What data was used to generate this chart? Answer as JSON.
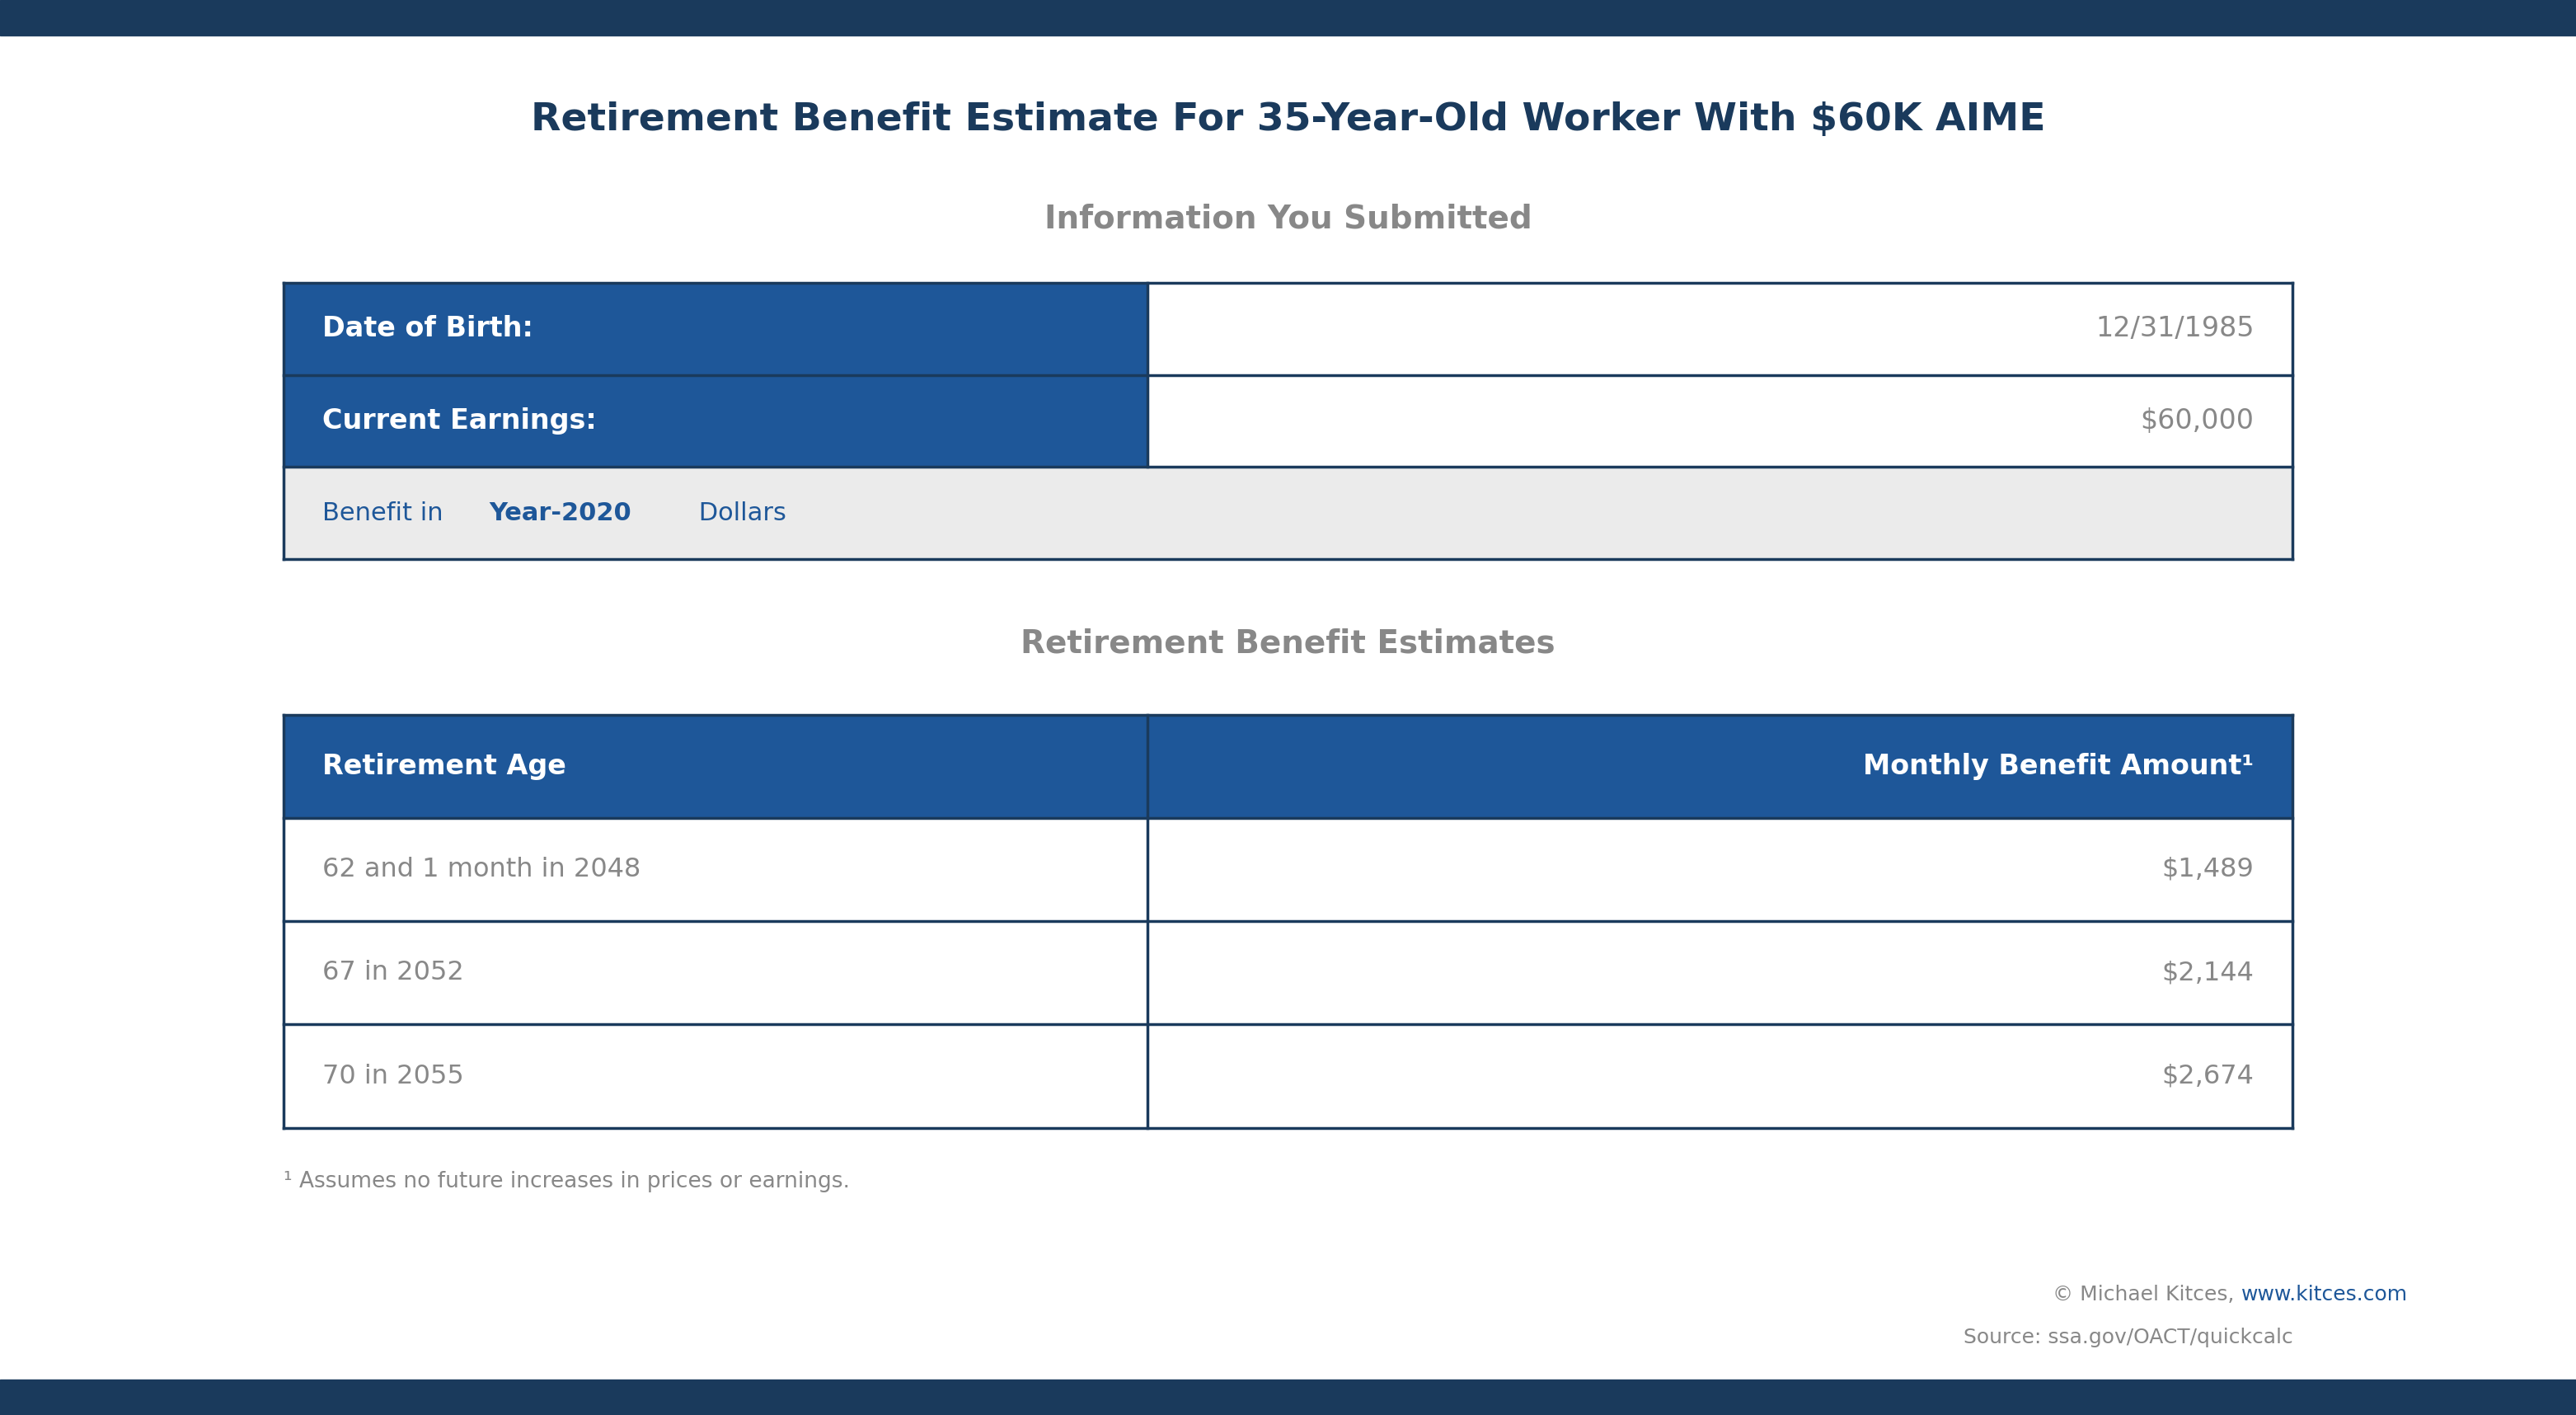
{
  "title": "Retirement Benefit Estimate For 35-Year-Old Worker With $60K AIME",
  "bg_color": "#ffffff",
  "table_blue": "#1e5799",
  "table_border_color": "#1a3a5c",
  "table_bg_light": "#ebebeb",
  "table_white": "#ffffff",
  "text_dark": "#1a3a5c",
  "text_gray": "#888888",
  "section1_title": "Information You Submitted",
  "section2_title": "Retirement Benefit Estimates",
  "info_row1_label": "Date of Birth:",
  "info_row1_value": "12/31/1985",
  "info_row2_label": "Current Earnings:",
  "info_row2_value": "$60,000",
  "info_row3_part1": "Benefit in ",
  "info_row3_part2": "Year-2020",
  "info_row3_part3": " Dollars",
  "benefit_header1": "Retirement Age",
  "benefit_header2": "Monthly Benefit Amount¹",
  "benefit_rows": [
    [
      "62 and 1 month in 2048",
      "$1,489"
    ],
    [
      "67 in 2052",
      "$2,144"
    ],
    [
      "70 in 2055",
      "$2,674"
    ]
  ],
  "footnote": "¹ Assumes no future increases in prices or earnings.",
  "copyright_gray": "© Michael Kitces, ",
  "copyright_link": "www.kitces.com",
  "source_line": "Source: ssa.gov/OACT/quickcalc",
  "top_bar_color": "#1a3a5c",
  "bottom_bar_color": "#1a3a5c"
}
